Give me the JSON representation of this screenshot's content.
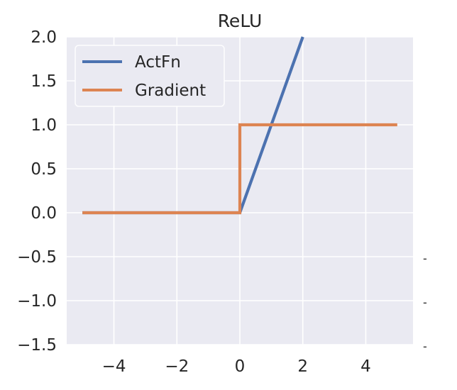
{
  "chart_data": {
    "type": "line",
    "title": "ReLU",
    "xlabel": "",
    "ylabel": "",
    "xlim": [
      -5.5,
      5.5
    ],
    "ylim": [
      -1.5,
      2.0
    ],
    "xticks": [
      -4,
      -2,
      0,
      2,
      4
    ],
    "xtick_labels": [
      "−4",
      "−2",
      "0",
      "2",
      "4"
    ],
    "yticks": [
      -1.5,
      -1.0,
      -0.5,
      0.0,
      0.5,
      1.0,
      1.5,
      2.0
    ],
    "ytick_labels": [
      "−1.5",
      "−1.0",
      "−0.5",
      "0.0",
      "0.5",
      "1.0",
      "1.5",
      "2.0"
    ],
    "grid": true,
    "legend_position": "top-left",
    "background": "#eaeaf2",
    "series": [
      {
        "name": "ActFn",
        "color": "#4c72b0",
        "x": [
          -5,
          0,
          2
        ],
        "y": [
          0,
          0,
          2
        ]
      },
      {
        "name": "Gradient",
        "color": "#dd8452",
        "x": [
          -5,
          0,
          0,
          5
        ],
        "y": [
          0,
          0,
          1,
          1
        ]
      }
    ]
  }
}
